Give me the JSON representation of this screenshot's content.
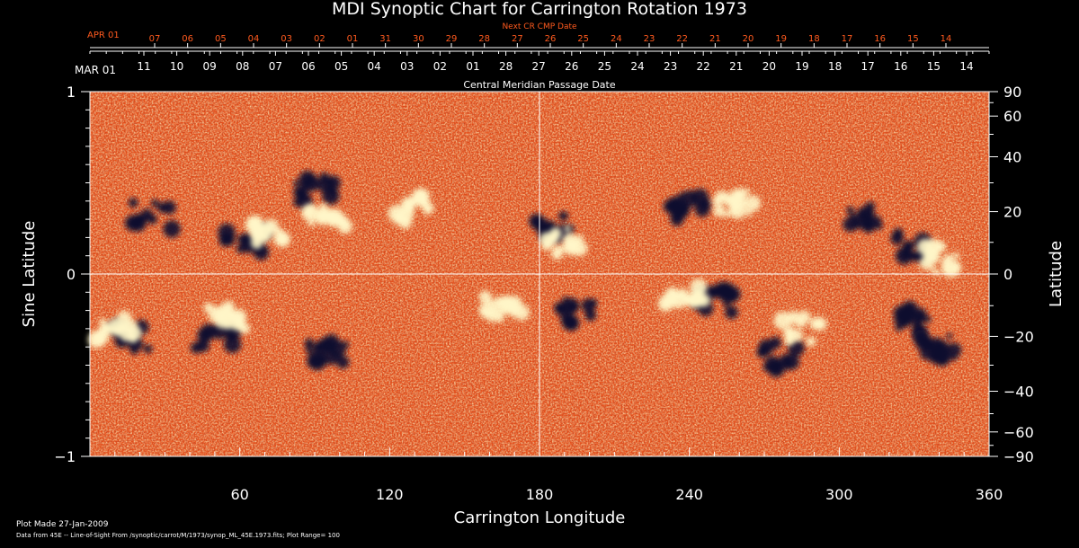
{
  "chart_data": {
    "type": "heatmap",
    "title": "MDI Synoptic Chart for Carrington Rotation 1973",
    "xlabel": "Carrington Longitude",
    "ylabel_left": "Sine Latitude",
    "ylabel_right": "Latitude",
    "xlim": [
      0,
      360
    ],
    "ylim": [
      -1,
      1
    ],
    "x_ticks": [
      60,
      120,
      180,
      240,
      300,
      360
    ],
    "y_left_ticks": [
      {
        "v": 1,
        "label": "1"
      },
      {
        "v": 0,
        "label": "0"
      },
      {
        "v": -1,
        "label": "−1"
      }
    ],
    "y_right_ticks": [
      {
        "deg": 90,
        "label": "90"
      },
      {
        "deg": 60,
        "label": "60"
      },
      {
        "deg": 40,
        "label": "40"
      },
      {
        "deg": 20,
        "label": "20"
      },
      {
        "deg": 0,
        "label": "0"
      },
      {
        "deg": -20,
        "label": "−20"
      },
      {
        "deg": -40,
        "label": "−40"
      },
      {
        "deg": -60,
        "label": "−60"
      },
      {
        "deg": -90,
        "label": "−90"
      }
    ],
    "cmp_axis_label": "Central Meridian Passage Date",
    "cmp_start_label": "MAR 01",
    "cmp_dates": [
      "11",
      "10",
      "09",
      "08",
      "07",
      "06",
      "05",
      "04",
      "03",
      "02",
      "01",
      "28",
      "27",
      "26",
      "25",
      "24",
      "23",
      "22",
      "21",
      "20",
      "19",
      "18",
      "17",
      "16",
      "15",
      "14"
    ],
    "next_cmp_axis_label": "Next CR CMP Date",
    "next_cmp_start_label": "APR 01",
    "next_cmp_dates": [
      "07",
      "06",
      "05",
      "04",
      "03",
      "02",
      "01",
      "31",
      "30",
      "29",
      "28",
      "27",
      "26",
      "25",
      "24",
      "23",
      "22",
      "21",
      "20",
      "19",
      "18",
      "17",
      "16",
      "15",
      "14"
    ],
    "colorbar_range": 100,
    "active_regions": [
      {
        "lon": 185,
        "sinlat": 0.25,
        "pol": "neg"
      },
      {
        "lon": 190,
        "sinlat": 0.18,
        "pol": "pos"
      },
      {
        "lon": 62,
        "sinlat": 0.17,
        "pol": "neg"
      },
      {
        "lon": 72,
        "sinlat": 0.22,
        "pol": "pos"
      },
      {
        "lon": 90,
        "sinlat": 0.46,
        "pol": "neg"
      },
      {
        "lon": 95,
        "sinlat": 0.3,
        "pol": "pos"
      },
      {
        "lon": 25,
        "sinlat": 0.32,
        "pol": "neg"
      },
      {
        "lon": 130,
        "sinlat": 0.35,
        "pol": "pos"
      },
      {
        "lon": 250,
        "sinlat": -0.15,
        "pol": "neg"
      },
      {
        "lon": 238,
        "sinlat": -0.1,
        "pol": "pos"
      },
      {
        "lon": 240,
        "sinlat": 0.37,
        "pol": "neg"
      },
      {
        "lon": 258,
        "sinlat": 0.4,
        "pol": "pos"
      },
      {
        "lon": 310,
        "sinlat": 0.32,
        "pol": "neg"
      },
      {
        "lon": 330,
        "sinlat": 0.15,
        "pol": "neg"
      },
      {
        "lon": 340,
        "sinlat": 0.08,
        "pol": "pos"
      },
      {
        "lon": 16,
        "sinlat": -0.35,
        "pol": "neg"
      },
      {
        "lon": 10,
        "sinlat": -0.3,
        "pol": "pos"
      },
      {
        "lon": 50,
        "sinlat": -0.35,
        "pol": "neg"
      },
      {
        "lon": 55,
        "sinlat": -0.25,
        "pol": "pos"
      },
      {
        "lon": 95,
        "sinlat": -0.42,
        "pol": "neg"
      },
      {
        "lon": 165,
        "sinlat": -0.2,
        "pol": "pos"
      },
      {
        "lon": 195,
        "sinlat": -0.2,
        "pol": "neg"
      },
      {
        "lon": 275,
        "sinlat": -0.45,
        "pol": "neg"
      },
      {
        "lon": 285,
        "sinlat": -0.3,
        "pol": "pos"
      },
      {
        "lon": 330,
        "sinlat": -0.25,
        "pol": "neg"
      },
      {
        "lon": 340,
        "sinlat": -0.4,
        "pol": "neg"
      }
    ]
  },
  "footer": {
    "plot_made": "Plot Made 27-Jan-2009",
    "data_source": "Data from 45E -- Line-of-Sight From /synoptic/carrot/M/1973/synop_ML_45E.1973.fits; Plot Range=  100"
  },
  "colors": {
    "background": "#000000",
    "map_base": "#e8501a",
    "positive_field": "#fff6c8",
    "negative_field": "#0a0a30",
    "axis": "#ffffff",
    "next_cr": "#ff5a1e"
  }
}
